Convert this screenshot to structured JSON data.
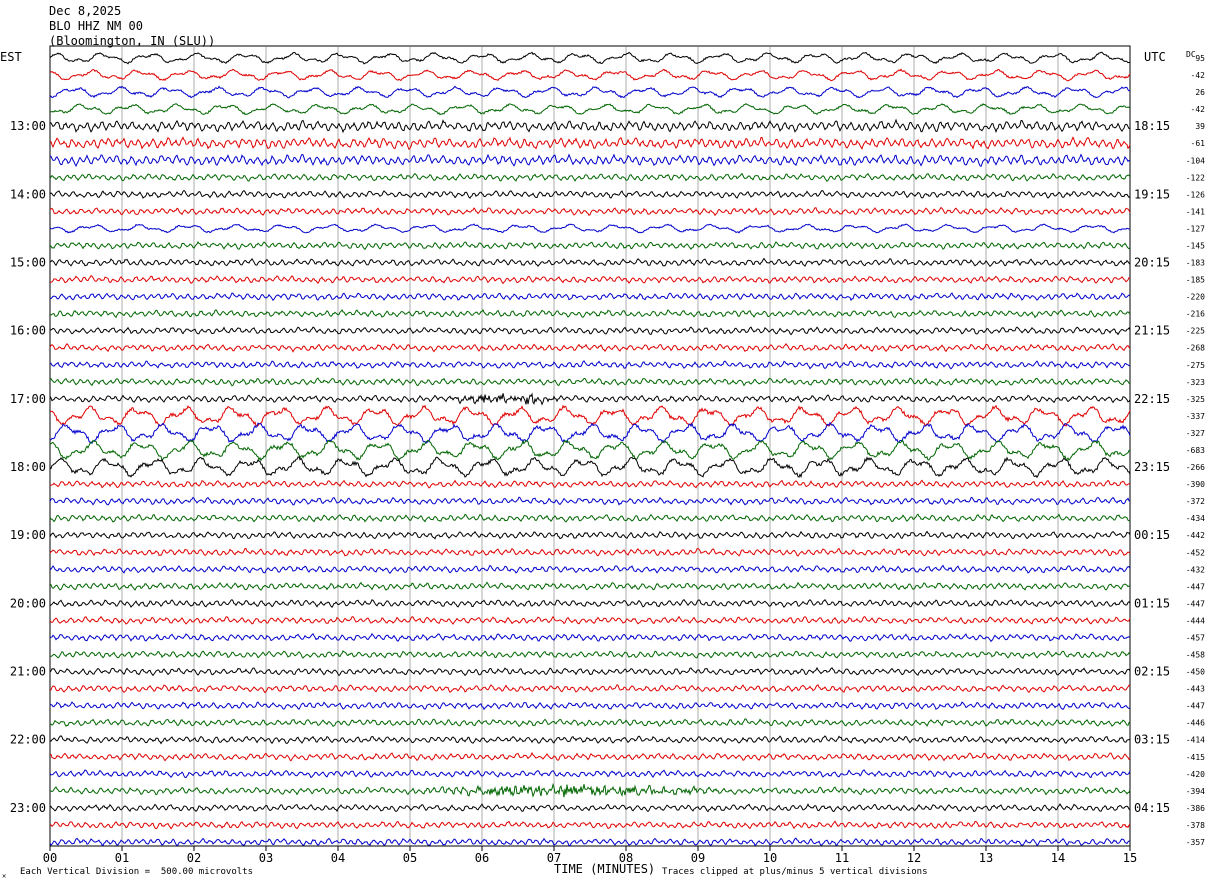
{
  "header": {
    "date": "Dec 8,2025",
    "station": "BLO HHZ NM 00",
    "location": "(Bloomington, IN (SLU))"
  },
  "left_axis_label": "EST",
  "right_axis_label": "UTC",
  "dc_label": "DC",
  "x_axis_title": "TIME (MINUTES)",
  "footer": {
    "scale_note": "Each Vertical Division =  500.00 microvolts",
    "clip_note": "Traces clipped at plus/minus 5 vertical divisions",
    "logo_mark": "✕"
  },
  "chart_data": {
    "type": "line",
    "title": "",
    "xlabel": "TIME (MINUTES)",
    "xlim": [
      0,
      15
    ],
    "x_tick_labels": [
      "00",
      "01",
      "02",
      "03",
      "04",
      "05",
      "06",
      "07",
      "08",
      "09",
      "10",
      "11",
      "12",
      "13",
      "14",
      "15"
    ],
    "trace_colors": [
      "#000000",
      "#e00000",
      "#0000cc",
      "#006600"
    ],
    "hour_labels_est": [
      "13:00",
      "14:00",
      "15:00",
      "16:00",
      "17:00",
      "18:00",
      "19:00",
      "20:00",
      "21:00",
      "22:00",
      "23:00"
    ],
    "hour_labels_utc": [
      "18:15",
      "19:15",
      "20:15",
      "21:15",
      "22:15",
      "23:15",
      "00:15",
      "01:15",
      "02:15",
      "03:15",
      "04:15"
    ],
    "dc_offsets": [
      "95",
      "-42",
      "26",
      "-42",
      "39",
      "-61",
      "-104",
      "-122",
      "-126",
      "-141",
      "-127",
      "-145",
      "-183",
      "-185",
      "-220",
      "-216",
      "-225",
      "-268",
      "-275",
      "-323",
      "-325",
      "-337",
      "-327",
      "-683",
      "-266",
      "-390",
      "-372",
      "-434",
      "-442",
      "-452",
      "-432",
      "-447",
      "-447",
      "-444",
      "-457",
      "-458",
      "-450",
      "-443",
      "-447",
      "-446",
      "-414",
      "-415",
      "-420",
      "-394",
      "-386",
      "-378",
      "-357"
    ],
    "events": [
      {
        "trace": 20,
        "minute_start": 5.5,
        "minute_end": 7.2,
        "description": "burst"
      },
      {
        "trace": 43,
        "minute_start": 4.8,
        "minute_end": 9.5,
        "description": "burst"
      }
    ]
  }
}
